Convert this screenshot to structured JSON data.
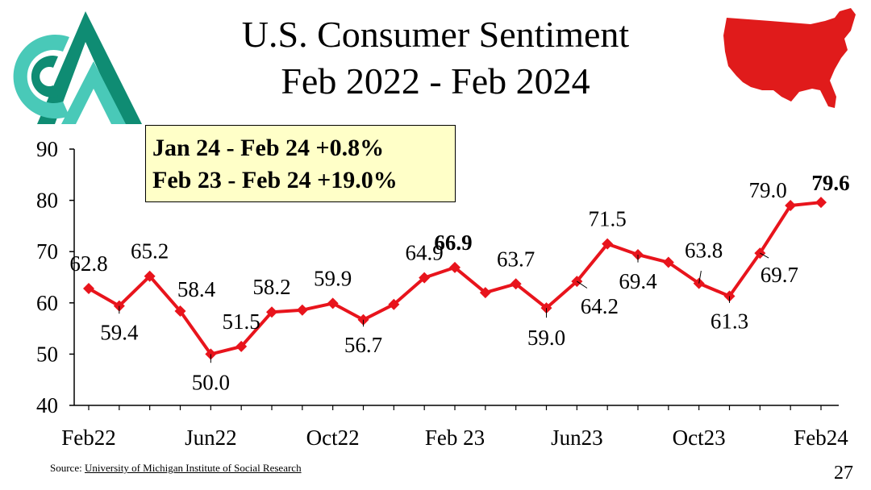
{
  "title_line1": "U.S. Consumer Sentiment",
  "title_line2": "Feb 2022 - Feb 2024",
  "callout": {
    "line1": "Jan 24 - Feb 24 +0.8%",
    "line2": "Feb 23 - Feb 24 +19.0%"
  },
  "source_label": "Source:",
  "source_link": "University of Michigan Institute of Social Research",
  "page_number": "27",
  "colors": {
    "series": "#e8141c",
    "logo_dark": "#0f8c73",
    "logo_light": "#49c9b8",
    "map": "#e01b1b",
    "callout_bg": "#ffffc8"
  },
  "chart_data": {
    "type": "line",
    "title": "U.S. Consumer Sentiment Feb 2022 - Feb 2024",
    "xlabel": "",
    "ylabel": "",
    "ylim": [
      40,
      90
    ],
    "yticks": [
      40,
      50,
      60,
      70,
      80,
      90
    ],
    "x_tick_labels": [
      "Feb22",
      "Jun22",
      "Oct22",
      "Feb 23",
      "Jun23",
      "Oct23",
      "Feb24"
    ],
    "x_tick_indices": [
      0,
      4,
      8,
      12,
      16,
      20,
      24
    ],
    "series": [
      {
        "name": "Consumer Sentiment",
        "values": [
          62.8,
          59.4,
          65.2,
          58.4,
          50.0,
          51.5,
          58.2,
          58.6,
          59.9,
          56.7,
          59.7,
          64.9,
          66.9,
          62.0,
          63.7,
          59.0,
          64.2,
          71.5,
          69.4,
          67.9,
          63.8,
          61.3,
          69.7,
          79.0,
          79.6
        ]
      }
    ],
    "data_labels": [
      {
        "index": 0,
        "text": "62.8",
        "bold": false
      },
      {
        "index": 1,
        "text": "59.4",
        "bold": false
      },
      {
        "index": 2,
        "text": "65.2",
        "bold": false
      },
      {
        "index": 3,
        "text": "58.4",
        "bold": false
      },
      {
        "index": 4,
        "text": "50.0",
        "bold": false
      },
      {
        "index": 5,
        "text": "51.5",
        "bold": false
      },
      {
        "index": 6,
        "text": "58.2",
        "bold": false
      },
      {
        "index": 8,
        "text": "59.9",
        "bold": false
      },
      {
        "index": 9,
        "text": "56.7",
        "bold": false
      },
      {
        "index": 11,
        "text": "64.9",
        "bold": false
      },
      {
        "index": 12,
        "text": "66.9",
        "bold": true
      },
      {
        "index": 14,
        "text": "63.7",
        "bold": false
      },
      {
        "index": 15,
        "text": "59.0",
        "bold": false
      },
      {
        "index": 16,
        "text": "64.2",
        "bold": false
      },
      {
        "index": 17,
        "text": "71.5",
        "bold": false
      },
      {
        "index": 18,
        "text": "69.4",
        "bold": false
      },
      {
        "index": 20,
        "text": "63.8",
        "bold": false
      },
      {
        "index": 21,
        "text": "61.3",
        "bold": false
      },
      {
        "index": 22,
        "text": "69.7",
        "bold": false
      },
      {
        "index": 23,
        "text": "79.0",
        "bold": false
      },
      {
        "index": 24,
        "text": "79.6",
        "bold": true
      }
    ]
  }
}
